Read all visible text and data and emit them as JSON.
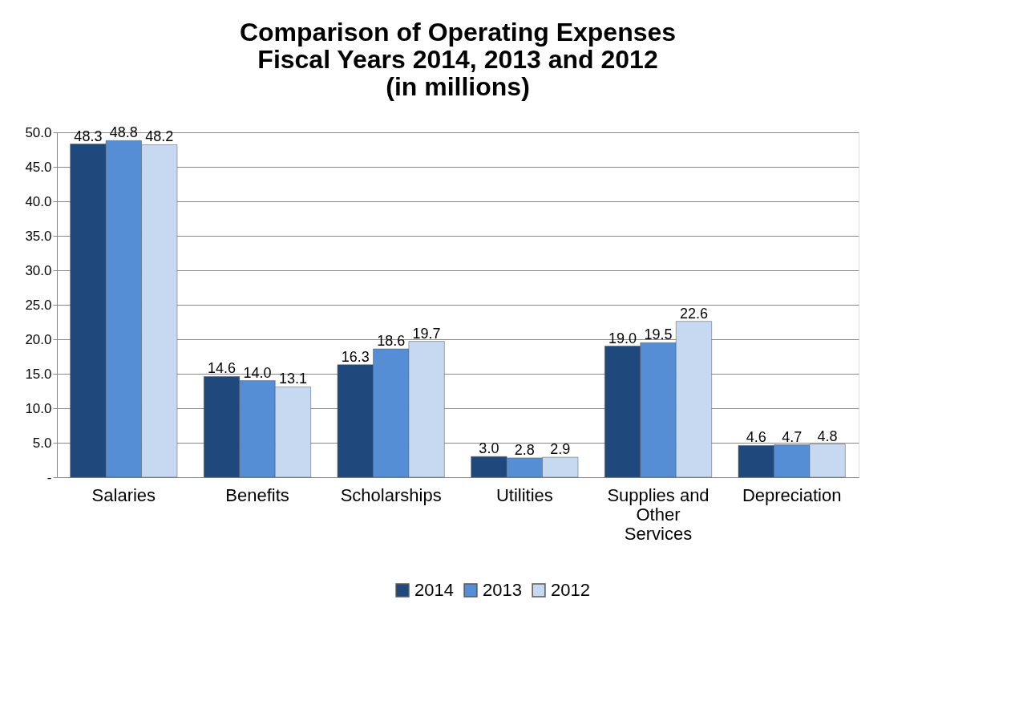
{
  "chart_data": {
    "type": "bar",
    "title": "Comparison of Operating Expenses\nFiscal Years 2014, 2013 and 2012\n(in millions)",
    "categories": [
      "Salaries",
      "Benefits",
      "Scholarships",
      "Utilities",
      "Supplies and Other Services",
      "Depreciation"
    ],
    "series": [
      {
        "name": "2014",
        "color": "#1f497d",
        "values": [
          48.3,
          14.6,
          16.3,
          3.0,
          19.0,
          4.6
        ],
        "value_labels": [
          "48.3",
          "14.6",
          "16.3",
          "3.0",
          "19.0",
          "4.6"
        ]
      },
      {
        "name": "2013",
        "color": "#558ed5",
        "values": [
          48.8,
          14.0,
          18.6,
          2.8,
          19.5,
          4.7
        ],
        "value_labels": [
          "48.8",
          "14.0",
          "18.6",
          "2.8",
          "19.5",
          "4.7"
        ]
      },
      {
        "name": "2012",
        "color": "#c6d9f1",
        "values": [
          48.2,
          13.1,
          19.7,
          2.9,
          22.6,
          4.8
        ],
        "value_labels": [
          "48.2",
          "13.1",
          "19.7",
          "2.9",
          "22.6",
          "4.8"
        ]
      }
    ],
    "ylim": [
      0,
      50
    ],
    "yticks": [
      {
        "value": 0,
        "label": "-"
      },
      {
        "value": 5,
        "label": "5.0"
      },
      {
        "value": 10,
        "label": "10.0"
      },
      {
        "value": 15,
        "label": "15.0"
      },
      {
        "value": 20,
        "label": "20.0"
      },
      {
        "value": 25,
        "label": "25.0"
      },
      {
        "value": 30,
        "label": "30.0"
      },
      {
        "value": 35,
        "label": "35.0"
      },
      {
        "value": 40,
        "label": "40.0"
      },
      {
        "value": 45,
        "label": "45.0"
      },
      {
        "value": 50,
        "label": "50.0"
      }
    ],
    "grid": "y",
    "legend": "bottom"
  }
}
